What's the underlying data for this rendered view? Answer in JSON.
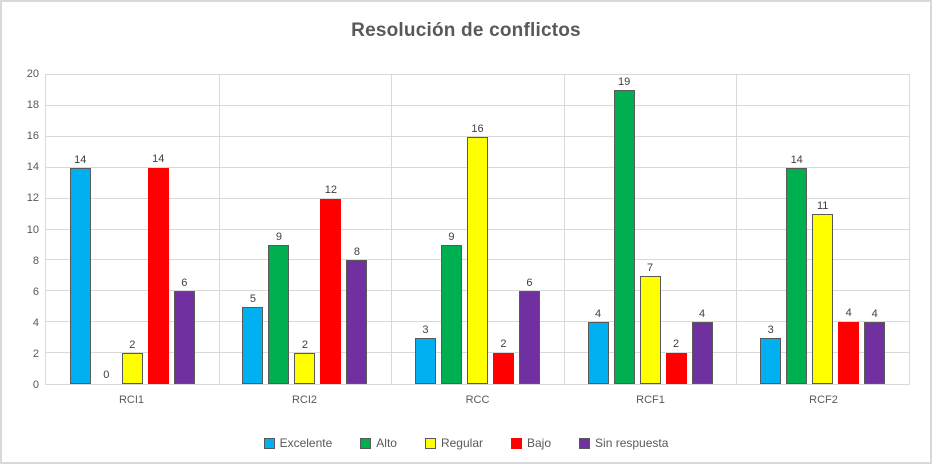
{
  "title": "Resolución de conflictos",
  "chart_data": {
    "type": "bar",
    "title": "Resolución de conflictos",
    "categories": [
      "RCI1",
      "RCI2",
      "RCC",
      "RCF1",
      "RCF2"
    ],
    "series": [
      {
        "name": "Excelente",
        "color": "#00B0F0",
        "border": "#595959",
        "values": [
          14,
          5,
          3,
          4,
          3
        ]
      },
      {
        "name": "Alto",
        "color": "#00B050",
        "border": "#595959",
        "values": [
          0,
          9,
          9,
          19,
          14
        ]
      },
      {
        "name": "Regular",
        "color": "#FFFF00",
        "border": "#595959",
        "values": [
          2,
          2,
          16,
          7,
          11
        ]
      },
      {
        "name": "Bajo",
        "color": "#FF0000",
        "border": null,
        "values": [
          14,
          12,
          2,
          2,
          4
        ]
      },
      {
        "name": "Sin respuesta",
        "color": "#7030A0",
        "border": "#595959",
        "values": [
          6,
          8,
          6,
          4,
          4
        ]
      }
    ],
    "ylim": [
      0,
      20
    ],
    "yticks": [
      0,
      2,
      4,
      6,
      8,
      10,
      12,
      14,
      16,
      18,
      20
    ],
    "xlabel": "",
    "ylabel": "",
    "grid": "horizontal every 2 units, vertical at category boundaries",
    "gridline_color": "#D9D9D9",
    "legend_position": "bottom",
    "data_labels": true,
    "text_color": "#595959",
    "value_label_color": "#404040"
  }
}
